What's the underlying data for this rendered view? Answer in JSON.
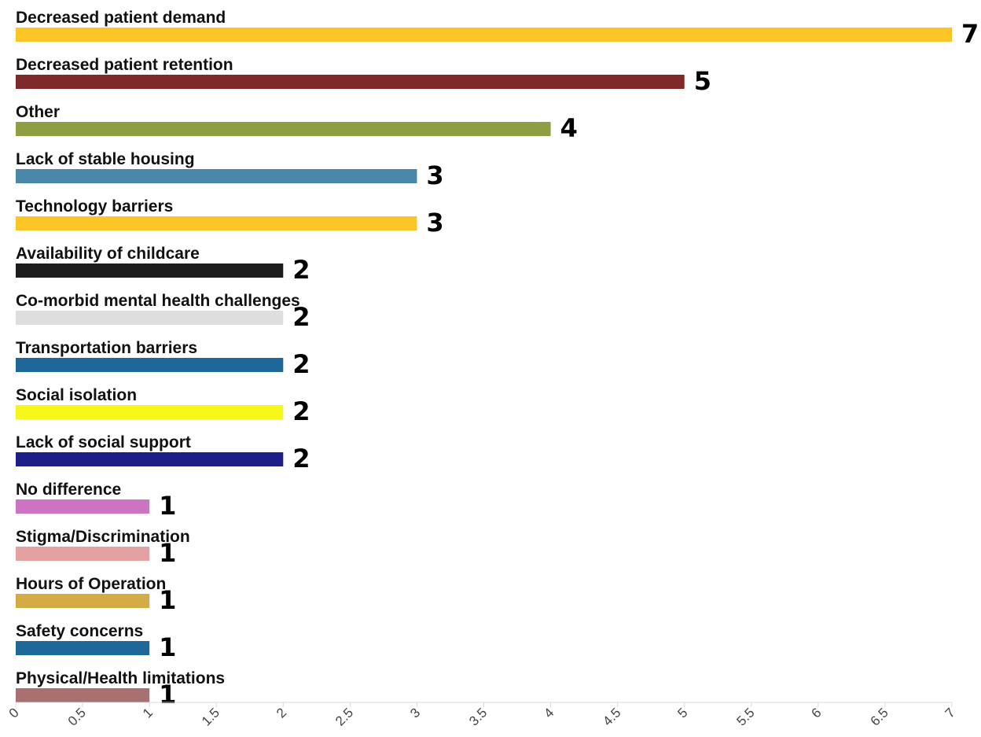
{
  "chart_data": {
    "type": "bar",
    "orientation": "horizontal",
    "categories": [
      "Decreased patient demand",
      "Decreased patient retention",
      "Other",
      "Lack of stable housing",
      "Technology barriers",
      "Availability of childcare",
      "Co-morbid mental health challenges",
      "Transportation barriers",
      "Social isolation",
      "Lack of social support",
      "No difference",
      "Stigma/Discrimination",
      "Hours of Operation",
      "Safety concerns",
      "Physical/Health limitations"
    ],
    "values": [
      7,
      5,
      4,
      3,
      3,
      2,
      2,
      2,
      2,
      2,
      1,
      1,
      1,
      1,
      1
    ],
    "colors": [
      "#fdc425",
      "#7f2a2a",
      "#8c9f42",
      "#4a86a8",
      "#fdc425",
      "#1c1c1c",
      "#dedede",
      "#1d6799",
      "#f8f71a",
      "#1d1e87",
      "#cc74c2",
      "#e3a1a2",
      "#d3ac45",
      "#1d6799",
      "#a87070"
    ],
    "xlim": [
      0,
      7
    ],
    "xticks": [
      "0",
      "0.5",
      "1",
      "1.5",
      "2",
      "2.5",
      "3",
      "3.5",
      "4",
      "4.5",
      "5",
      "5.5",
      "6",
      "6.5",
      "7"
    ],
    "title": "",
    "xlabel": "",
    "ylabel": "",
    "grid": false,
    "legend": "none"
  }
}
